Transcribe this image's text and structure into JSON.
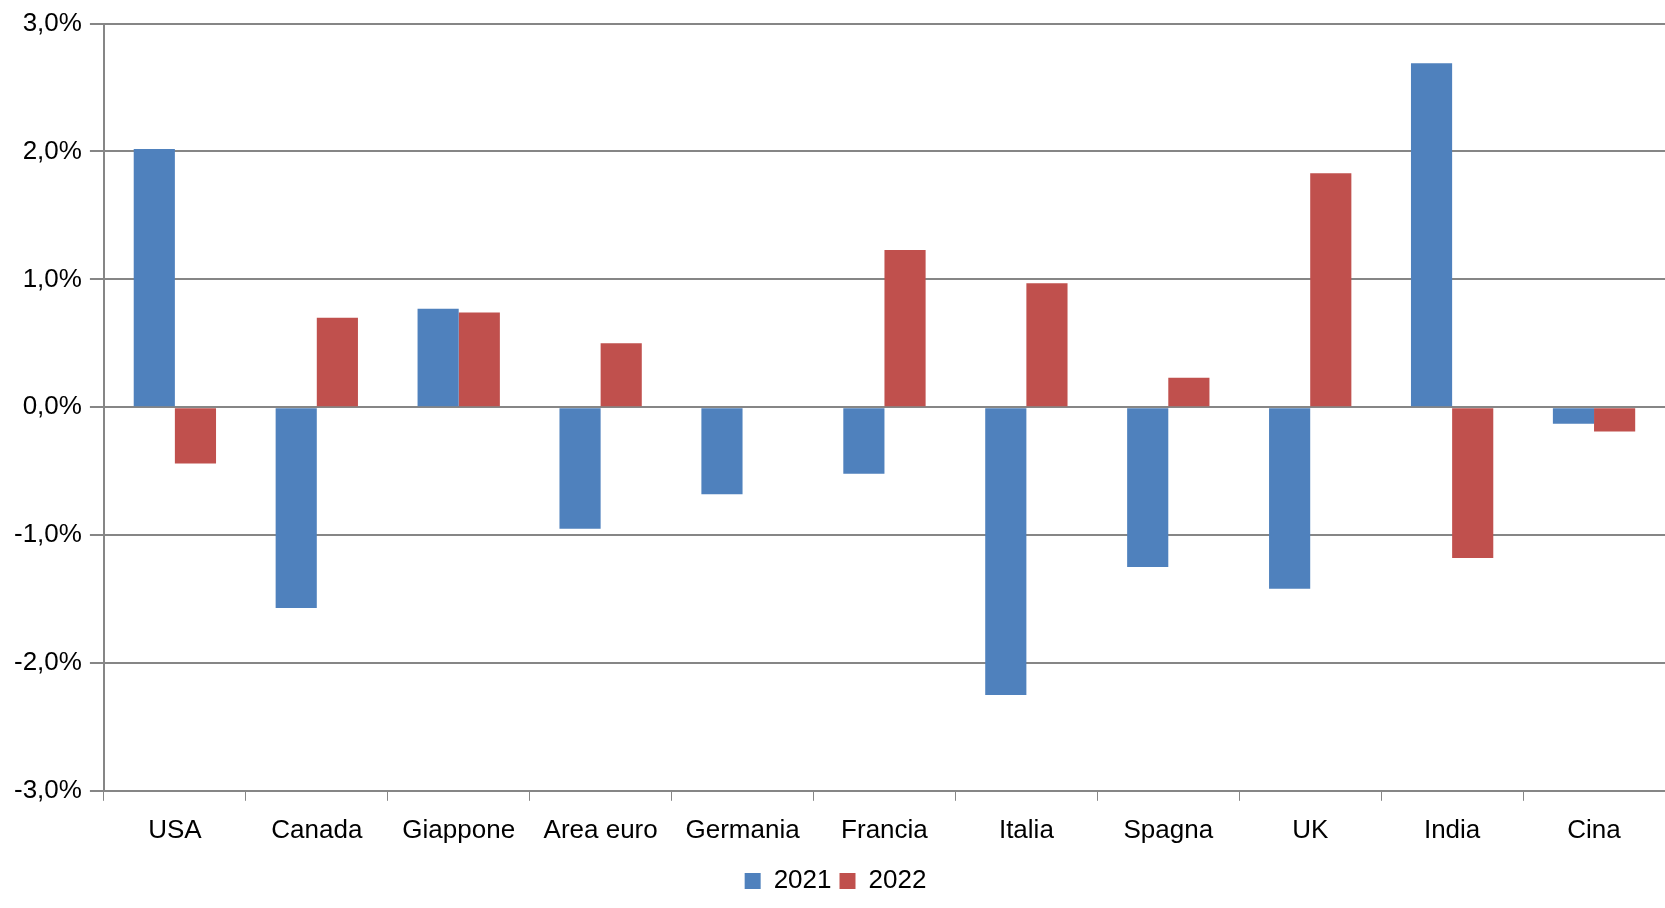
{
  "chart_data": {
    "type": "bar",
    "categories": [
      "USA",
      "Canada",
      "Giappone",
      "Area euro",
      "Germania",
      "Francia",
      "Italia",
      "Spagna",
      "UK",
      "India",
      "Cina"
    ],
    "series": [
      {
        "name": "2021",
        "color": "#4f81bd",
        "values": [
          2.02,
          -1.57,
          0.77,
          -0.95,
          -0.68,
          -0.52,
          -2.25,
          -1.25,
          -1.42,
          2.69,
          -0.13
        ]
      },
      {
        "name": "2022",
        "color": "#c0504d",
        "values": [
          -0.44,
          0.7,
          0.74,
          0.5,
          0,
          1.23,
          0.97,
          0.23,
          1.83,
          -1.18,
          -0.19
        ]
      }
    ],
    "ylim": [
      -3,
      3
    ],
    "yticks": [
      {
        "value": -3,
        "label": "-3,0%"
      },
      {
        "value": -2,
        "label": "-2,0%"
      },
      {
        "value": -1,
        "label": "-1,0%"
      },
      {
        "value": 0,
        "label": "0,0%"
      },
      {
        "value": 1,
        "label": "1,0%"
      },
      {
        "value": 2,
        "label": "2,0%"
      },
      {
        "value": 3,
        "label": "3,0%"
      }
    ],
    "grid": "y",
    "legend": "bottom"
  }
}
